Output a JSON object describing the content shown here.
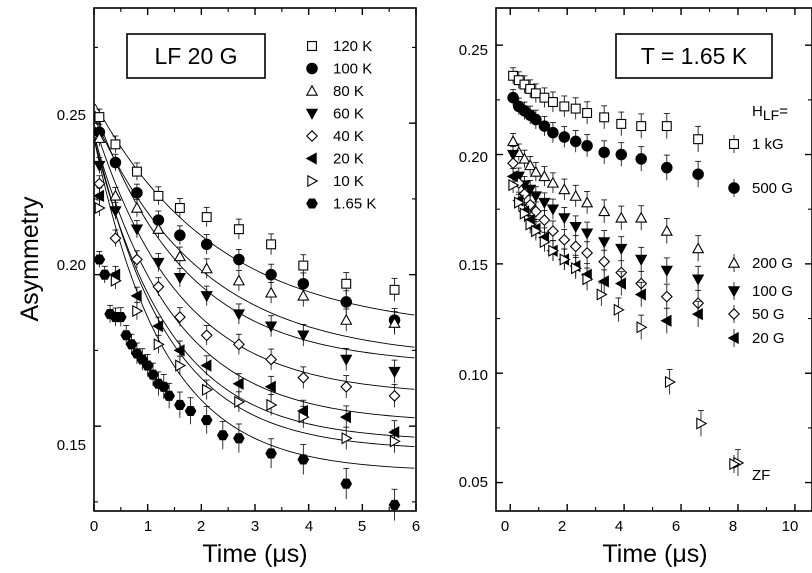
{
  "chart_data": [
    {
      "type": "scatter",
      "title": "LF 20 G",
      "xlabel": "Time (μs)",
      "ylabel": "Asymmetry",
      "xlim": [
        0,
        6
      ],
      "ylim": [
        0.122,
        0.288
      ],
      "xticks": [
        0,
        1,
        2,
        3,
        4,
        5,
        6
      ],
      "yticks": [
        0.15,
        0.2,
        0.25
      ],
      "xtick_labels": [
        "0",
        "1",
        "2",
        "3",
        "4",
        "5",
        "6"
      ],
      "ytick_labels": [
        "0.15",
        "0.20",
        "0.25"
      ],
      "has_fit_curves": true,
      "legend_position": "top-right",
      "series": [
        {
          "name": "120 K",
          "marker": "open-square",
          "fit": {
            "c": 0.181,
            "a": 0.076,
            "tau": 2.3
          },
          "x": [
            0.1,
            0.4,
            0.8,
            1.2,
            1.6,
            2.1,
            2.7,
            3.3,
            3.9,
            4.7,
            5.6
          ],
          "y": [
            0.252,
            0.243,
            0.234,
            0.226,
            0.222,
            0.219,
            0.215,
            0.21,
            0.203,
            0.197,
            0.195
          ]
        },
        {
          "name": "100 K",
          "marker": "filled-circle",
          "fit": {
            "c": 0.172,
            "a": 0.08,
            "tau": 2.0
          },
          "x": [
            0.1,
            0.4,
            0.8,
            1.2,
            1.6,
            2.1,
            2.7,
            3.3,
            3.9,
            4.7,
            5.6
          ],
          "y": [
            0.247,
            0.237,
            0.227,
            0.218,
            0.213,
            0.21,
            0.205,
            0.2,
            0.197,
            0.191,
            0.185
          ]
        },
        {
          "name": "80 K",
          "marker": "open-triangle-up",
          "fit": {
            "c": 0.17,
            "a": 0.085,
            "tau": 1.7
          },
          "x": [
            0.1,
            0.4,
            0.8,
            1.2,
            1.6,
            2.1,
            2.7,
            3.3,
            3.9,
            4.7,
            5.6
          ],
          "y": [
            0.245,
            0.226,
            0.222,
            0.215,
            0.206,
            0.202,
            0.198,
            0.194,
            0.193,
            0.185,
            0.184
          ]
        },
        {
          "name": "60 K",
          "marker": "filled-triangle-down",
          "fit": {
            "c": 0.16,
            "a": 0.09,
            "tau": 1.6
          },
          "x": [
            0.1,
            0.4,
            0.8,
            1.2,
            1.6,
            2.1,
            2.7,
            3.3,
            3.9,
            4.7,
            5.6
          ],
          "y": [
            0.236,
            0.221,
            0.215,
            0.204,
            0.199,
            0.193,
            0.187,
            0.183,
            0.18,
            0.172,
            0.168
          ]
        },
        {
          "name": "40 K",
          "marker": "open-diamond",
          "fit": {
            "c": 0.151,
            "a": 0.095,
            "tau": 1.5
          },
          "x": [
            0.1,
            0.4,
            0.8,
            1.2,
            1.6,
            2.1,
            2.7,
            3.3,
            3.9,
            4.7,
            5.6
          ],
          "y": [
            0.23,
            0.212,
            0.205,
            0.196,
            0.186,
            0.18,
            0.177,
            0.172,
            0.166,
            0.163,
            0.16
          ]
        },
        {
          "name": "20 K",
          "marker": "filled-triangle-left",
          "fit": {
            "c": 0.145,
            "a": 0.1,
            "tau": 1.4
          },
          "x": [
            0.1,
            0.4,
            0.8,
            1.2,
            1.6,
            2.1,
            2.7,
            3.3,
            3.9,
            4.7,
            5.6
          ],
          "y": [
            0.226,
            0.2,
            0.193,
            0.183,
            0.175,
            0.17,
            0.164,
            0.163,
            0.155,
            0.153,
            0.148
          ]
        },
        {
          "name": "10 K",
          "marker": "open-triangle-right",
          "fit": {
            "c": 0.142,
            "a": 0.105,
            "tau": 1.35
          },
          "x": [
            0.1,
            0.4,
            0.8,
            1.2,
            1.6,
            2.1,
            2.7,
            3.3,
            3.9,
            4.7,
            5.6
          ],
          "y": [
            0.222,
            0.198,
            0.188,
            0.177,
            0.17,
            0.162,
            0.158,
            0.157,
            0.153,
            0.146,
            0.145
          ]
        },
        {
          "name": "1.65 K",
          "marker": "filled-hexagon",
          "fit": {
            "c": 0.135,
            "a": 0.11,
            "tau": 1.3
          },
          "x": [
            0.1,
            0.2,
            0.3,
            0.4,
            0.5,
            0.6,
            0.7,
            0.8,
            0.9,
            1.0,
            1.1,
            1.2,
            1.3,
            1.4,
            1.6,
            1.8,
            2.1,
            2.4,
            2.7,
            3.3,
            3.9,
            4.7,
            5.6
          ],
          "y": [
            0.205,
            0.2,
            0.187,
            0.186,
            0.186,
            0.18,
            0.177,
            0.174,
            0.172,
            0.17,
            0.167,
            0.164,
            0.163,
            0.16,
            0.157,
            0.155,
            0.152,
            0.147,
            0.146,
            0.141,
            0.139,
            0.131,
            0.124
          ]
        }
      ]
    },
    {
      "type": "scatter",
      "title": "T = 1.65 K",
      "xlabel": "Time (μs)",
      "ylabel": "",
      "xlim": [
        -0.5,
        10.6
      ],
      "ylim": [
        0.037,
        0.267
      ],
      "xticks": [
        0,
        2,
        4,
        6,
        8,
        10
      ],
      "yticks": [
        0.05,
        0.1,
        0.15,
        0.2,
        0.25
      ],
      "xtick_labels": [
        "0",
        "2",
        "4",
        "6",
        "8",
        "10"
      ],
      "ytick_labels": [
        "0.05",
        "0.10",
        "0.15",
        "0.20",
        "0.25"
      ],
      "legend_title": "H",
      "legend_title_sub": "LF",
      "legend_title_suffix": "=",
      "series": [
        {
          "name": "1 kG",
          "marker": "open-square",
          "x": [
            0.1,
            0.3,
            0.5,
            0.7,
            0.9,
            1.2,
            1.5,
            1.9,
            2.3,
            2.7,
            3.3,
            3.9,
            4.6,
            5.5,
            6.6
          ],
          "y": [
            0.236,
            0.234,
            0.232,
            0.23,
            0.228,
            0.226,
            0.224,
            0.222,
            0.221,
            0.219,
            0.217,
            0.214,
            0.213,
            0.213,
            0.207
          ]
        },
        {
          "name": "500 G",
          "marker": "filled-circle",
          "x": [
            0.1,
            0.3,
            0.5,
            0.7,
            0.9,
            1.2,
            1.5,
            1.9,
            2.3,
            2.7,
            3.3,
            3.9,
            4.6,
            5.5,
            6.6
          ],
          "y": [
            0.226,
            0.222,
            0.22,
            0.218,
            0.216,
            0.213,
            0.21,
            0.208,
            0.206,
            0.204,
            0.201,
            0.2,
            0.198,
            0.194,
            0.191
          ]
        },
        {
          "name": "200 G",
          "marker": "open-triangle-up",
          "x": [
            0.1,
            0.3,
            0.5,
            0.7,
            0.9,
            1.2,
            1.5,
            1.9,
            2.3,
            2.7,
            3.3,
            3.9,
            4.6,
            5.5,
            6.6
          ],
          "y": [
            0.206,
            0.201,
            0.198,
            0.195,
            0.192,
            0.19,
            0.187,
            0.184,
            0.181,
            0.178,
            0.174,
            0.171,
            0.171,
            0.165,
            0.157
          ]
        },
        {
          "name": "100 G",
          "marker": "filled-triangle-down",
          "x": [
            0.1,
            0.3,
            0.5,
            0.7,
            0.9,
            1.2,
            1.5,
            1.9,
            2.3,
            2.7,
            3.3,
            3.9,
            4.6,
            5.5,
            6.6
          ],
          "y": [
            0.2,
            0.19,
            0.186,
            0.184,
            0.181,
            0.178,
            0.175,
            0.171,
            0.167,
            0.164,
            0.16,
            0.157,
            0.152,
            0.147,
            0.143
          ]
        },
        {
          "name": "50 G",
          "marker": "open-diamond",
          "x": [
            0.1,
            0.3,
            0.5,
            0.7,
            0.9,
            1.2,
            1.5,
            1.9,
            2.3,
            2.7,
            3.3,
            3.9,
            4.6,
            5.5,
            6.6
          ],
          "y": [
            0.196,
            0.187,
            0.182,
            0.177,
            0.174,
            0.17,
            0.165,
            0.161,
            0.158,
            0.155,
            0.151,
            0.146,
            0.141,
            0.135,
            0.132
          ]
        },
        {
          "name": "20 G",
          "marker": "filled-triangle-left",
          "x": [
            0.1,
            0.3,
            0.5,
            0.7,
            0.9,
            1.2,
            1.5,
            1.9,
            2.3,
            2.7,
            3.3,
            3.9,
            4.6,
            5.5,
            6.6
          ],
          "y": [
            0.19,
            0.179,
            0.174,
            0.17,
            0.166,
            0.162,
            0.156,
            0.152,
            0.149,
            0.145,
            0.142,
            0.141,
            0.136,
            0.124,
            0.127
          ]
        },
        {
          "name": "ZF",
          "marker": "open-triangle-right",
          "x": [
            0.1,
            0.3,
            0.5,
            0.7,
            0.9,
            1.2,
            1.5,
            1.9,
            2.3,
            2.7,
            3.2,
            3.8,
            4.6,
            5.6,
            6.7,
            8.0
          ],
          "y": [
            0.186,
            0.178,
            0.173,
            0.168,
            0.165,
            0.16,
            0.156,
            0.152,
            0.148,
            0.143,
            0.136,
            0.129,
            0.121,
            0.096,
            0.077,
            0.059
          ]
        }
      ]
    }
  ]
}
